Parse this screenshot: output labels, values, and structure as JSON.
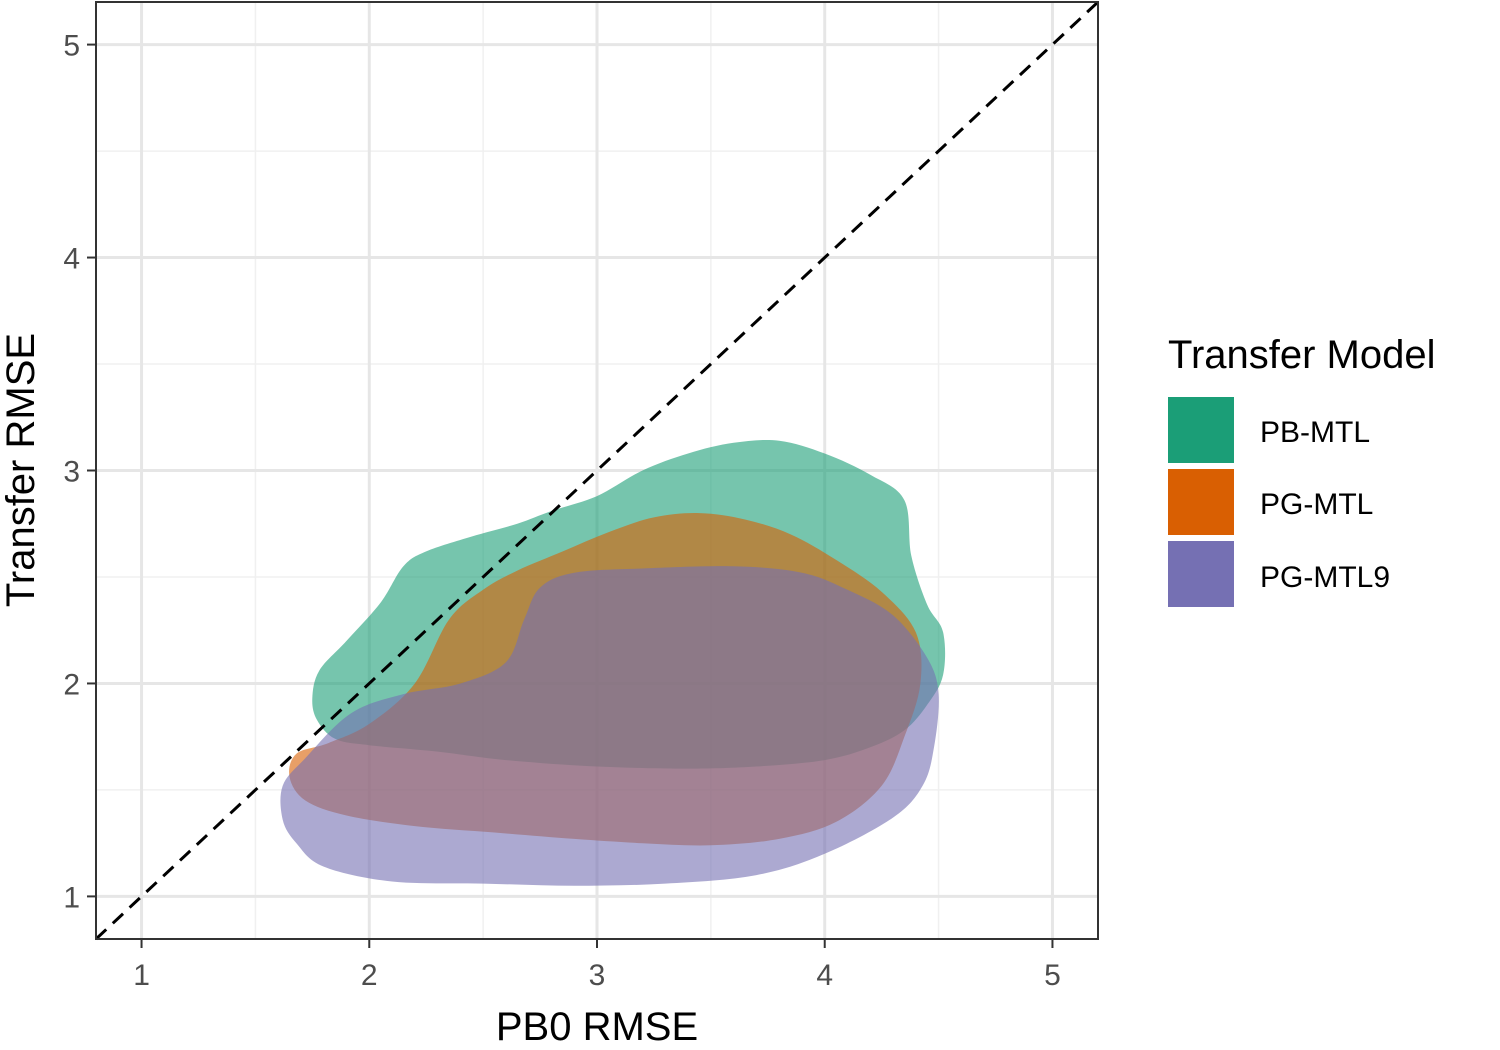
{
  "chart_data": {
    "type": "area",
    "xlabel": "PB0 RMSE",
    "ylabel": "Transfer RMSE",
    "xlim": [
      0.8,
      5.2
    ],
    "ylim": [
      0.8,
      5.2
    ],
    "x_ticks": [
      "1",
      "2",
      "3",
      "4",
      "5"
    ],
    "y_ticks": [
      "1",
      "2",
      "3",
      "4",
      "5"
    ],
    "grid": true,
    "reference_line": {
      "type": "identity",
      "style": "dashed",
      "color": "#000000"
    },
    "legend": {
      "title": "Transfer Model",
      "position": "right"
    },
    "series": [
      {
        "name": "PB-MTL",
        "color": "#1B9E77",
        "opacity": 0.6,
        "outline": [
          [
            1.75,
            1.93
          ],
          [
            1.78,
            2.06
          ],
          [
            1.9,
            2.2
          ],
          [
            2.05,
            2.38
          ],
          [
            2.15,
            2.55
          ],
          [
            2.25,
            2.62
          ],
          [
            2.45,
            2.69
          ],
          [
            2.65,
            2.75
          ],
          [
            2.8,
            2.81
          ],
          [
            3.0,
            2.88
          ],
          [
            3.2,
            3.0
          ],
          [
            3.4,
            3.08
          ],
          [
            3.6,
            3.13
          ],
          [
            3.8,
            3.14
          ],
          [
            4.0,
            3.08
          ],
          [
            4.2,
            2.98
          ],
          [
            4.35,
            2.86
          ],
          [
            4.38,
            2.6
          ],
          [
            4.45,
            2.37
          ],
          [
            4.52,
            2.24
          ],
          [
            4.52,
            2.04
          ],
          [
            4.45,
            1.9
          ],
          [
            4.35,
            1.78
          ],
          [
            4.2,
            1.7
          ],
          [
            4.0,
            1.64
          ],
          [
            3.7,
            1.61
          ],
          [
            3.4,
            1.6
          ],
          [
            3.0,
            1.61
          ],
          [
            2.6,
            1.64
          ],
          [
            2.3,
            1.68
          ],
          [
            2.0,
            1.71
          ],
          [
            1.85,
            1.74
          ],
          [
            1.77,
            1.83
          ]
        ]
      },
      {
        "name": "PG-MTL",
        "color": "#D95F02",
        "opacity": 0.6,
        "outline": [
          [
            1.65,
            1.56
          ],
          [
            1.68,
            1.67
          ],
          [
            1.82,
            1.72
          ],
          [
            2.0,
            1.81
          ],
          [
            2.2,
            2.0
          ],
          [
            2.35,
            2.3
          ],
          [
            2.5,
            2.44
          ],
          [
            2.65,
            2.53
          ],
          [
            2.85,
            2.62
          ],
          [
            3.05,
            2.71
          ],
          [
            3.25,
            2.78
          ],
          [
            3.45,
            2.8
          ],
          [
            3.65,
            2.77
          ],
          [
            3.85,
            2.7
          ],
          [
            4.05,
            2.58
          ],
          [
            4.25,
            2.43
          ],
          [
            4.4,
            2.24
          ],
          [
            4.42,
            2.0
          ],
          [
            4.35,
            1.75
          ],
          [
            4.25,
            1.52
          ],
          [
            4.05,
            1.35
          ],
          [
            3.8,
            1.27
          ],
          [
            3.5,
            1.24
          ],
          [
            3.2,
            1.25
          ],
          [
            2.9,
            1.27
          ],
          [
            2.55,
            1.3
          ],
          [
            2.2,
            1.33
          ],
          [
            1.9,
            1.38
          ],
          [
            1.72,
            1.45
          ]
        ]
      },
      {
        "name": "PG-MTL9",
        "color": "#7570B3",
        "opacity": 0.6,
        "outline": [
          [
            1.62,
            1.36
          ],
          [
            1.62,
            1.52
          ],
          [
            1.72,
            1.65
          ],
          [
            1.92,
            1.86
          ],
          [
            2.15,
            1.95
          ],
          [
            2.4,
            2.0
          ],
          [
            2.6,
            2.1
          ],
          [
            2.68,
            2.3
          ],
          [
            2.75,
            2.45
          ],
          [
            2.9,
            2.52
          ],
          [
            3.2,
            2.54
          ],
          [
            3.6,
            2.55
          ],
          [
            3.9,
            2.52
          ],
          [
            4.1,
            2.44
          ],
          [
            4.3,
            2.32
          ],
          [
            4.45,
            2.12
          ],
          [
            4.5,
            1.95
          ],
          [
            4.48,
            1.7
          ],
          [
            4.43,
            1.52
          ],
          [
            4.3,
            1.37
          ],
          [
            4.0,
            1.2
          ],
          [
            3.7,
            1.1
          ],
          [
            3.3,
            1.06
          ],
          [
            2.9,
            1.05
          ],
          [
            2.5,
            1.06
          ],
          [
            2.1,
            1.07
          ],
          [
            1.8,
            1.14
          ],
          [
            1.68,
            1.25
          ]
        ]
      }
    ]
  }
}
